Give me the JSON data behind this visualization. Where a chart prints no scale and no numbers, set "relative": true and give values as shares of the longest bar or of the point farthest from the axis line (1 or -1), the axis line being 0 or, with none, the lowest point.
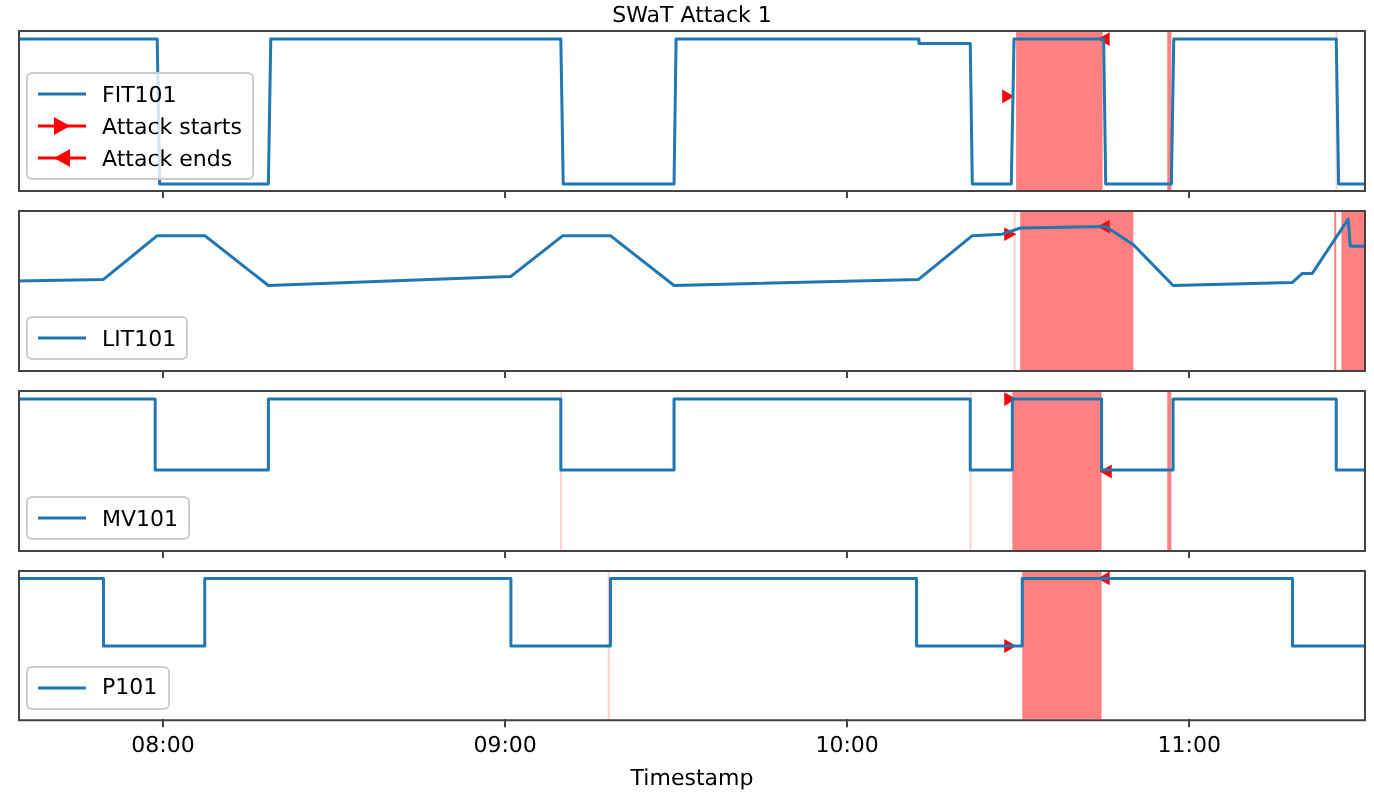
{
  "chart_data": [
    {
      "type": "line",
      "title": "SWaT Attack 1",
      "relative": true,
      "xlim": [
        7.576,
        11.517
      ],
      "xticks": [
        {
          "value": 8,
          "label": null
        },
        {
          "value": 9,
          "label": null
        },
        {
          "value": 10,
          "label": null
        },
        {
          "value": 11,
          "label": null
        }
      ],
      "tick_labels": false,
      "legend": "bottom left",
      "series": [
        {
          "name": "FIT101",
          "color": "#1f77b4",
          "x": [
            7.576,
            7.983,
            7.99,
            8.308,
            8.315,
            9.163,
            9.17,
            9.494,
            9.5,
            10.209,
            10.21,
            10.36,
            10.366,
            10.48,
            10.488,
            10.75,
            10.756,
            10.948,
            10.955,
            11.43,
            11.437,
            11.517
          ],
          "values": [
            1,
            1,
            0.04,
            0.04,
            1,
            1,
            0.04,
            0.04,
            1,
            1,
            0.97,
            0.97,
            0.04,
            0.04,
            1,
            1,
            0.04,
            0.04,
            1,
            1,
            0.04,
            0.04
          ]
        },
        {
          "name": "Attack starts",
          "type": "scatter",
          "marker": "triangle",
          "color": "#ff0000",
          "x": [
            10.465
          ],
          "values": [
            0.62
          ]
        },
        {
          "name": "Attack ends",
          "type": "scatter",
          "marker": "triangle",
          "color": "#ff0000",
          "x": [
            10.756
          ],
          "values": [
            1
          ]
        }
      ],
      "bands": [
        {
          "axis": "x",
          "from": 10.494,
          "to": 10.747,
          "color": "#ff8080"
        },
        {
          "axis": "x",
          "from": 10.936,
          "to": 10.948,
          "color": "#ff8080"
        },
        {
          "axis": "x",
          "from": 11.428,
          "to": 11.432,
          "color": "#ffd0d0"
        }
      ]
    },
    {
      "type": "line",
      "relative": true,
      "xlim": [
        7.576,
        11.517
      ],
      "xticks": [
        {
          "value": 8,
          "label": null
        },
        {
          "value": 9,
          "label": null
        },
        {
          "value": 10,
          "label": null
        },
        {
          "value": 11,
          "label": null
        }
      ],
      "tick_labels": false,
      "legend": "bottom left",
      "series": [
        {
          "name": "LIT101",
          "color": "#1f77b4",
          "x": [
            7.576,
            7.826,
            7.983,
            8.122,
            8.308,
            9.017,
            9.169,
            9.308,
            9.494,
            10.209,
            10.366,
            10.453,
            10.506,
            10.756,
            10.837,
            10.953,
            11.302,
            11.331,
            11.36,
            11.465,
            11.471,
            11.517
          ],
          "values": [
            0.59,
            0.6,
            0.89,
            0.89,
            0.56,
            0.62,
            0.89,
            0.89,
            0.56,
            0.6,
            0.89,
            0.9,
            0.94,
            0.95,
            0.83,
            0.56,
            0.58,
            0.64,
            0.64,
            1,
            0.82,
            0.82
          ]
        },
        {
          "type": "scatter",
          "marker": "triangle",
          "color": "#ff0000",
          "x": [
            10.471
          ],
          "values": [
            0.9
          ]
        },
        {
          "type": "scatter",
          "marker": "triangle",
          "color": "#ff0000",
          "x": [
            10.756
          ],
          "values": [
            0.95
          ]
        }
      ],
      "bands": [
        {
          "axis": "x",
          "from": 10.487,
          "to": 10.49,
          "color": "#ffd0d0"
        },
        {
          "axis": "x",
          "from": 10.506,
          "to": 10.837,
          "color": "#ff8080"
        },
        {
          "axis": "x",
          "from": 11.424,
          "to": 11.43,
          "color": "#ff8080"
        },
        {
          "axis": "x",
          "from": 11.445,
          "to": 11.517,
          "color": "#ff8080"
        }
      ]
    },
    {
      "type": "step",
      "relative": true,
      "xlim": [
        7.576,
        11.517
      ],
      "xticks": [
        {
          "value": 8,
          "label": null
        },
        {
          "value": 9,
          "label": null
        },
        {
          "value": 10,
          "label": null
        },
        {
          "value": 11,
          "label": null
        }
      ],
      "tick_labels": false,
      "legend": "bottom left",
      "series": [
        {
          "name": "MV101",
          "color": "#1f77b4",
          "x": [
            7.576,
            7.977,
            8.308,
            9.163,
            9.494,
            10.36,
            10.483,
            10.744,
            10.953,
            11.43,
            11.517
          ],
          "values": [
            1,
            0.53,
            1,
            0.53,
            1,
            0.53,
            1,
            0.53,
            1,
            0.53,
            0.53
          ]
        },
        {
          "type": "scatter",
          "marker": "triangle",
          "color": "#ff0000",
          "x": [
            10.471
          ],
          "values": [
            1
          ]
        },
        {
          "type": "scatter",
          "marker": "triangle",
          "color": "#ff0000",
          "x": [
            10.762
          ],
          "values": [
            0.52
          ]
        }
      ],
      "bands": [
        {
          "axis": "x",
          "from": 9.161,
          "to": 9.165,
          "color": "#ffd0d0"
        },
        {
          "axis": "x",
          "from": 10.358,
          "to": 10.362,
          "color": "#ffd0d0"
        },
        {
          "axis": "x",
          "from": 10.483,
          "to": 10.744,
          "color": "#ff8080"
        },
        {
          "axis": "x",
          "from": 10.936,
          "to": 10.948,
          "color": "#ff8080"
        }
      ]
    },
    {
      "type": "step",
      "relative": true,
      "xlabel": "Timestamp",
      "xlim": [
        7.576,
        11.517
      ],
      "xticks": [
        {
          "value": 8,
          "label": "08:00"
        },
        {
          "value": 9,
          "label": "09:00"
        },
        {
          "value": 10,
          "label": "10:00"
        },
        {
          "value": 11,
          "label": "11:00"
        }
      ],
      "tick_labels": "x",
      "legend": "bottom left",
      "series": [
        {
          "name": "P101",
          "color": "#1f77b4",
          "x": [
            7.576,
            7.826,
            8.122,
            9.017,
            9.308,
            10.203,
            10.512,
            11.302,
            11.517
          ],
          "values": [
            1,
            0.52,
            1,
            0.52,
            1,
            0.52,
            1,
            0.52,
            0.52
          ]
        },
        {
          "type": "scatter",
          "marker": "triangle",
          "color": "#ff0000",
          "x": [
            10.471
          ],
          "values": [
            0.52
          ]
        },
        {
          "type": "scatter",
          "marker": "triangle",
          "color": "#ff0000",
          "x": [
            10.756
          ],
          "values": [
            1
          ]
        }
      ],
      "bands": [
        {
          "axis": "x",
          "from": 9.3,
          "to": 9.304,
          "color": "#ffd0d0"
        },
        {
          "axis": "x",
          "from": 10.512,
          "to": 10.744,
          "color": "#ff8080"
        }
      ]
    }
  ]
}
